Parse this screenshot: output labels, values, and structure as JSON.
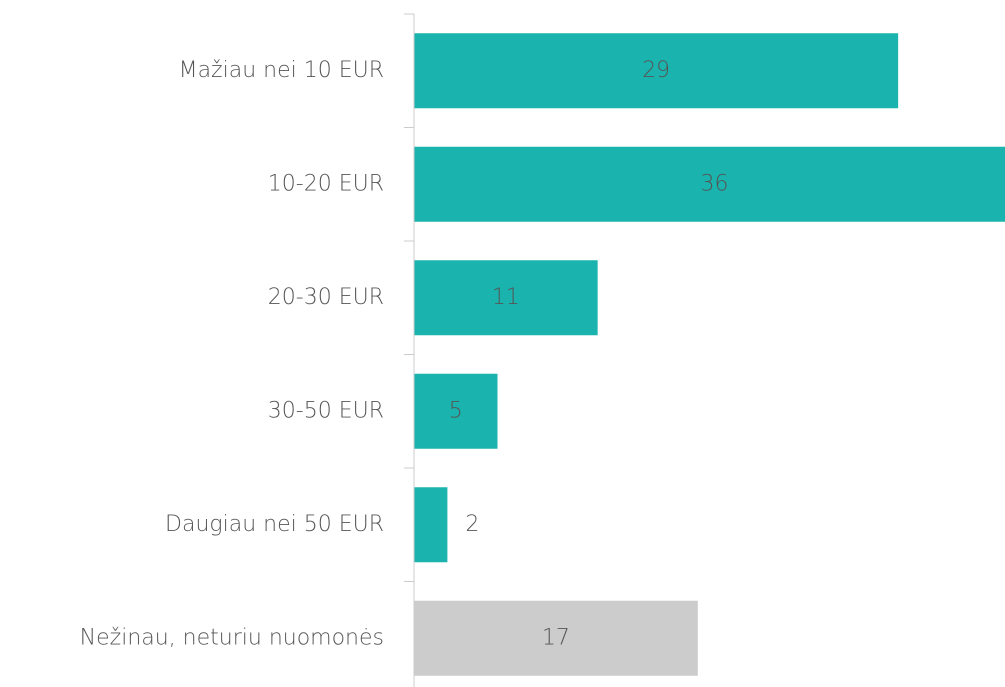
{
  "chart_data": {
    "type": "barh",
    "categories": [
      "Mažiau nei 10 EUR",
      "10-20 EUR",
      "20-30 EUR",
      "30-50 EUR",
      "Daugiau nei 50 EUR",
      "Nežinau, neturiu nuomonės"
    ],
    "values": [
      29,
      36,
      11,
      5,
      2,
      17
    ],
    "colors": [
      "#1ab3ad",
      "#1ab3ad",
      "#1ab3ad",
      "#1ab3ad",
      "#1ab3ad",
      "#cccccc"
    ],
    "xlim": [
      0,
      35.4
    ]
  }
}
